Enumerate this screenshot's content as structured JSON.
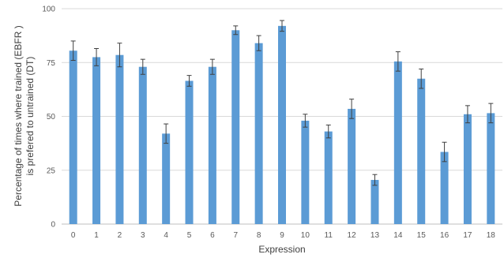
{
  "chart_data": {
    "type": "bar",
    "xlabel": "Expression",
    "ylabel_line1": "Percentage of times where trained (EBFR )",
    "ylabel_line2": "is prefered to untrained (DT)",
    "ylim": [
      0,
      100
    ],
    "yticks": [
      0,
      25,
      50,
      75,
      100
    ],
    "grid": true,
    "legend": "none",
    "bar_color": "#5b9bd5",
    "categories": [
      "0",
      "1",
      "2",
      "3",
      "4",
      "5",
      "6",
      "7",
      "8",
      "9",
      "10",
      "11",
      "12",
      "13",
      "14",
      "15",
      "16",
      "17",
      "18"
    ],
    "values": [
      80.5,
      77.5,
      78.5,
      73,
      42,
      66.5,
      73,
      90,
      84,
      92,
      48,
      43,
      53.5,
      20.5,
      75.5,
      67.5,
      33.5,
      51,
      51.5
    ],
    "error": [
      4.5,
      4,
      5.5,
      3.5,
      4.5,
      2.5,
      3.5,
      2,
      3.5,
      2.5,
      3,
      3,
      4.5,
      2.5,
      4.5,
      4.5,
      4.5,
      4,
      4.5
    ]
  }
}
